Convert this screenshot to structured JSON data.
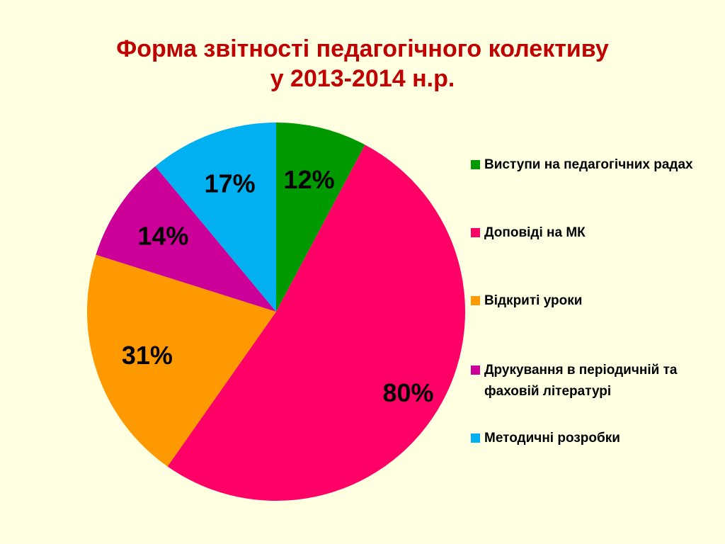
{
  "title": {
    "line1": "Форма звітності педагогічного колективу",
    "line2": "у 2013-2014 н.р."
  },
  "chart_data": {
    "type": "pie",
    "title": "Форма звітності педагогічного колективу у 2013-2014 н.р.",
    "categories": [
      "Виступи на педагогічних радах",
      "Доповіді на МК",
      "Відкриті уроки",
      "Друкування в періодичній та фаховій літературі",
      "Методичні розробки"
    ],
    "values": [
      12,
      80,
      31,
      14,
      17
    ],
    "data_labels": [
      "12%",
      "80%",
      "31%",
      "14%",
      "17%"
    ],
    "colors": [
      "#009900",
      "#ff0066",
      "#ff9900",
      "#cc0099",
      "#00b0f0"
    ],
    "legend_position": "right"
  },
  "legend": {
    "items": [
      {
        "label": "Виступи на педагогічних радах",
        "color": "#009900"
      },
      {
        "label": "Доповіді на МК",
        "color": "#ff0066"
      },
      {
        "label": "Відкриті уроки",
        "color": "#ff9900"
      },
      {
        "label": "Друкування в періодичній та фаховій літературі",
        "color": "#cc0099"
      },
      {
        "label": "Методичні розробки",
        "color": "#00b0f0"
      }
    ]
  }
}
